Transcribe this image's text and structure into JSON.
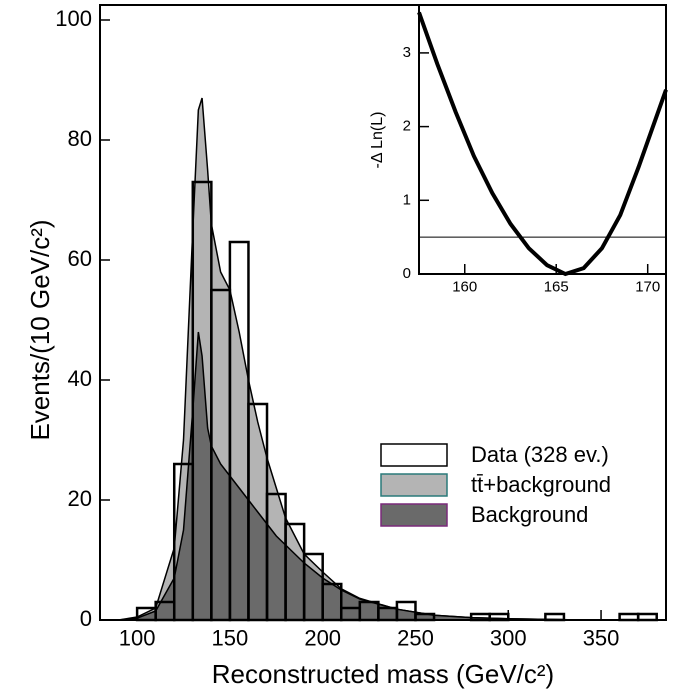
{
  "chart_data": [
    {
      "type": "histogram",
      "xlabel": "Reconstructed mass (GeV/c²)",
      "ylabel": "Events/(10 GeV/c²)",
      "name": "Data (328 ev.)",
      "color": "#ffffff",
      "bins": [
        100,
        110,
        120,
        130,
        140,
        150,
        160,
        170,
        180,
        190,
        200,
        210,
        220,
        230,
        240,
        250,
        260,
        270,
        280,
        290,
        300,
        310,
        320,
        330,
        340,
        350,
        360,
        370,
        380
      ],
      "values": [
        2,
        3,
        26,
        73,
        55,
        63,
        36,
        21,
        16,
        11,
        6,
        2,
        3,
        2,
        3,
        1,
        0,
        0,
        1,
        1,
        0,
        0,
        1,
        0,
        0,
        0,
        1,
        1
      ],
      "series": [
        {
          "name": "tt̄+background",
          "color": "#b4b4b4",
          "x": [
            90,
            100,
            110,
            120,
            125,
            130,
            133,
            135,
            138,
            140,
            145,
            150,
            155,
            160,
            165,
            170,
            175,
            180,
            190,
            200,
            210,
            220,
            240,
            260,
            280,
            300,
            340,
            380
          ],
          "values": [
            0,
            0.5,
            2,
            12,
            30,
            65,
            85,
            87,
            75,
            66,
            58,
            55,
            48,
            40,
            33,
            27,
            22,
            17,
            11,
            8,
            5.2,
            3.6,
            1.8,
            0.8,
            0.4,
            0.2,
            0,
            0
          ]
        },
        {
          "name": "Background",
          "color": "#6a6a6a",
          "x": [
            90,
            100,
            110,
            120,
            125,
            130,
            133,
            135,
            138,
            140,
            145,
            150,
            155,
            160,
            165,
            170,
            175,
            180,
            190,
            200,
            210,
            220,
            240,
            260,
            280,
            300,
            340,
            380
          ],
          "values": [
            0,
            0.3,
            1.5,
            7,
            15,
            35,
            48,
            44,
            32,
            29,
            26,
            24,
            22,
            20,
            18,
            16,
            14,
            12.5,
            9.5,
            7,
            5,
            3.5,
            1.8,
            0.8,
            0.4,
            0.2,
            0,
            0
          ]
        }
      ],
      "xlim": [
        80,
        385
      ],
      "ylim": [
        0,
        102.5
      ],
      "xticks": [
        100,
        150,
        200,
        250,
        300,
        350
      ],
      "yticks": [
        0,
        20,
        40,
        60,
        80,
        100
      ],
      "legend": "right"
    },
    {
      "type": "line",
      "ylabel": "-Δ Ln(L)",
      "x": [
        157.5,
        158.5,
        159.5,
        160.5,
        161.5,
        162.5,
        163.5,
        164.5,
        165.5,
        166.5,
        167.5,
        168.5,
        169.5,
        170.5,
        171
      ],
      "values": [
        3.55,
        2.85,
        2.2,
        1.6,
        1.1,
        0.68,
        0.35,
        0.12,
        0,
        0.08,
        0.35,
        0.8,
        1.45,
        2.15,
        2.5
      ],
      "color": "#000000",
      "hline": 0.5,
      "xlim": [
        157.5,
        171
      ],
      "ylim": [
        0,
        3.65
      ],
      "xticks": [
        160,
        165,
        170
      ],
      "yticks": [
        0,
        1,
        2,
        3
      ]
    }
  ]
}
